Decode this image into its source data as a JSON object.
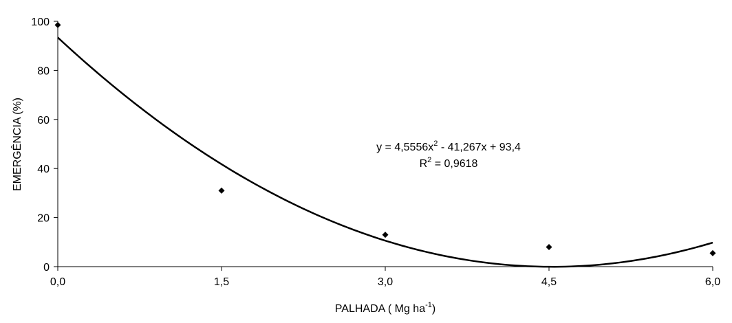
{
  "chart_data": {
    "type": "scatter",
    "title": "",
    "xlabel": "PALHADA ( Mg ha",
    "xlabel_sup": "-1",
    "xlabel_end": ")",
    "ylabel": "EMERGÊNCIA (%)",
    "xlim": [
      0,
      6
    ],
    "ylim": [
      0,
      100
    ],
    "x_ticks": [
      "0,0",
      "1,5",
      "3,0",
      "4,5",
      "6,0"
    ],
    "y_ticks": [
      "0",
      "20",
      "40",
      "60",
      "80",
      "100"
    ],
    "x_tick_values": [
      0,
      1.5,
      3,
      4.5,
      6
    ],
    "y_tick_values": [
      0,
      20,
      40,
      60,
      80,
      100
    ],
    "grid": false,
    "legend": "none",
    "marker": "diamond",
    "color": "#000000",
    "points": [
      {
        "x": 0,
        "y": 98.5
      },
      {
        "x": 1.5,
        "y": 31
      },
      {
        "x": 3,
        "y": 13
      },
      {
        "x": 4.5,
        "y": 8
      },
      {
        "x": 6,
        "y": 5.5
      }
    ],
    "trendline": {
      "type": "polynomial",
      "coefficients": {
        "a": 4.5556,
        "b": -41.267,
        "c": 93.4
      },
      "equation_prefix": "y = 4,5556x",
      "equation_sup": "2",
      "equation_suffix": " - 41,267x + 93,4",
      "r2_prefix": "R",
      "r2_sup": "2",
      "r2_suffix": " = 0,9618"
    }
  }
}
